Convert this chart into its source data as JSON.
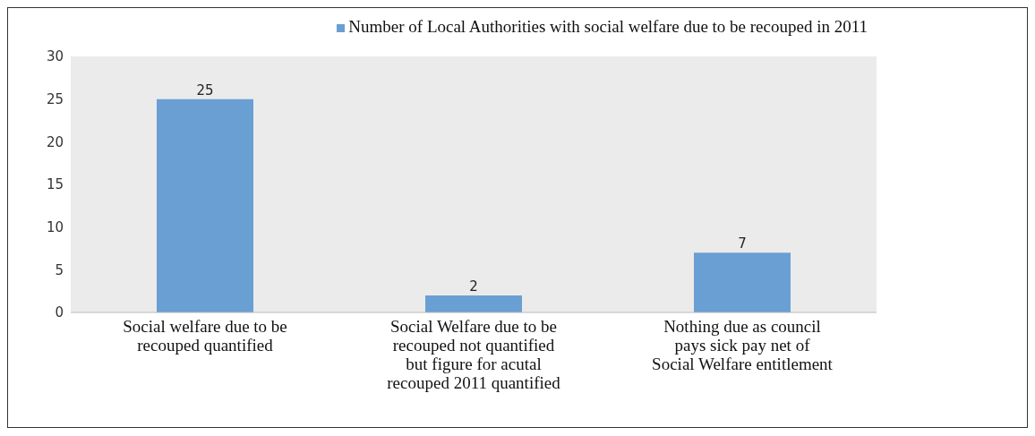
{
  "chart_data": {
    "type": "bar",
    "categories": [
      "Social welfare due to be recouped quantified",
      "Social Welfare due to be recouped not quantified but figure for acutal recouped 2011 quantified",
      "Nothing due as council pays sick pay net of Social Welfare entitlement"
    ],
    "series": [
      {
        "name": "Number of Local Authorities with social welfare due to be recouped in 2011",
        "color": "#6a9fd4",
        "values": [
          25,
          2,
          7
        ]
      }
    ],
    "ylim": [
      0,
      30
    ],
    "yticks": [
      0,
      5,
      10,
      15,
      20,
      25,
      30
    ],
    "data_labels": true,
    "legend": "top right"
  }
}
